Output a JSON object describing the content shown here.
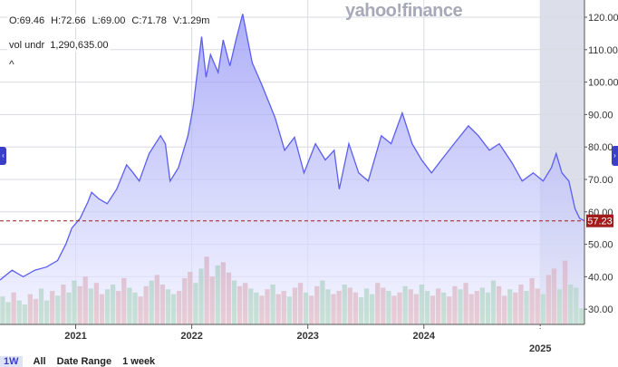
{
  "header": {
    "ohlc": {
      "open": "O:69.46",
      "high": "H:72.66",
      "low": "L:69.00",
      "close": "C:71.78",
      "volume": "V:1.29m"
    },
    "volume_under_label": "vol undr",
    "volume_under_value": "1,290,635.00",
    "collapse_icon": "caret-up-icon",
    "logo": "yahoo!finance"
  },
  "side_tabs": {
    "left": "‹",
    "right": "›"
  },
  "bottom_toolbar": {
    "first": "1W",
    "all": "All",
    "date_range": "Date Range",
    "interval": "1 week"
  },
  "colors": {
    "line": "#5b5ef0",
    "fill_top": "#8d8ff5",
    "fill_bottom": "#eef0ff",
    "volume_up": "#6cbd72",
    "volume_down": "#d8756f",
    "last_price": "#a31c1c",
    "shade": "#dcdfe9",
    "side_tab": "#3b3fc7"
  },
  "chart_data": {
    "type": "area",
    "xlabel": "",
    "ylabel": "",
    "x_ticks": [
      "2021",
      "2022",
      "2023",
      "2024",
      "2025"
    ],
    "y_ticks": [
      "30.00",
      "40.00",
      "50.00",
      "60.00",
      "70.00",
      "80.00",
      "90.00",
      "100.00",
      "110.00",
      "120.00"
    ],
    "ylim": [
      25,
      125
    ],
    "xlim": [
      "2020-05-08",
      "2025-05-20"
    ],
    "grid": true,
    "last_price": 57.23,
    "last_price_label": "57.23",
    "shaded_from": "2025-01-01",
    "price": [
      [
        "2020-05-08",
        39
      ],
      [
        "2020-06-15",
        42
      ],
      [
        "2020-07-20",
        40
      ],
      [
        "2020-08-25",
        42
      ],
      [
        "2020-10-01",
        43
      ],
      [
        "2020-11-05",
        45
      ],
      [
        "2020-12-01",
        50
      ],
      [
        "2020-12-20",
        55
      ],
      [
        "2021-01-15",
        58
      ],
      [
        "2021-02-08",
        63
      ],
      [
        "2021-02-20",
        66
      ],
      [
        "2021-03-15",
        64
      ],
      [
        "2021-04-10",
        62.5
      ],
      [
        "2021-05-10",
        67
      ],
      [
        "2021-06-10",
        74.5
      ],
      [
        "2021-07-01",
        72
      ],
      [
        "2021-07-20",
        69.5
      ],
      [
        "2021-08-20",
        78
      ],
      [
        "2021-09-25",
        83.5
      ],
      [
        "2021-10-10",
        81
      ],
      [
        "2021-10-25",
        69.5
      ],
      [
        "2021-11-20",
        73.6
      ],
      [
        "2021-12-20",
        83.5
      ],
      [
        "2022-01-05",
        92
      ],
      [
        "2022-02-01",
        114
      ],
      [
        "2022-02-15",
        101.5
      ],
      [
        "2022-03-01",
        108.5
      ],
      [
        "2022-03-25",
        103
      ],
      [
        "2022-04-10",
        113
      ],
      [
        "2022-05-01",
        105
      ],
      [
        "2022-05-20",
        113
      ],
      [
        "2022-06-10",
        121
      ],
      [
        "2022-07-10",
        106
      ],
      [
        "2022-08-10",
        99
      ],
      [
        "2022-09-20",
        89
      ],
      [
        "2022-10-20",
        79
      ],
      [
        "2022-11-20",
        83
      ],
      [
        "2022-12-20",
        72
      ],
      [
        "2023-01-25",
        81
      ],
      [
        "2023-02-25",
        76
      ],
      [
        "2023-03-25",
        79
      ],
      [
        "2023-04-10",
        67
      ],
      [
        "2023-05-10",
        81
      ],
      [
        "2023-06-10",
        72
      ],
      [
        "2023-07-10",
        69.5
      ],
      [
        "2023-08-20",
        83.5
      ],
      [
        "2023-09-20",
        81
      ],
      [
        "2023-10-25",
        90.5
      ],
      [
        "2023-11-25",
        81
      ],
      [
        "2023-12-25",
        76
      ],
      [
        "2024-01-25",
        72
      ],
      [
        "2024-02-25",
        76
      ],
      [
        "2024-04-05",
        81
      ],
      [
        "2024-05-20",
        86.5
      ],
      [
        "2024-06-20",
        83.5
      ],
      [
        "2024-07-25",
        79
      ],
      [
        "2024-08-25",
        81
      ],
      [
        "2024-10-05",
        75
      ],
      [
        "2024-11-05",
        69.5
      ],
      [
        "2024-12-10",
        72
      ],
      [
        "2025-01-10",
        69.5
      ],
      [
        "2025-02-05",
        73.6
      ],
      [
        "2025-02-20",
        78
      ],
      [
        "2025-03-10",
        72
      ],
      [
        "2025-04-01",
        69.5
      ],
      [
        "2025-04-20",
        61
      ],
      [
        "2025-05-05",
        58
      ],
      [
        "2025-05-20",
        57.23
      ]
    ],
    "volume_relative": [
      35,
      28,
      40,
      30,
      25,
      38,
      32,
      45,
      30,
      42,
      36,
      50,
      40,
      55,
      48,
      60,
      45,
      52,
      38,
      44,
      50,
      42,
      58,
      46,
      40,
      35,
      48,
      55,
      62,
      50,
      44,
      38,
      42,
      58,
      66,
      52,
      70,
      85,
      60,
      74,
      78,
      65,
      55,
      48,
      52,
      45,
      40,
      36,
      44,
      50,
      38,
      42,
      35,
      46,
      52,
      40,
      36,
      48,
      55,
      44,
      38,
      42,
      50,
      46,
      40,
      34,
      45,
      38,
      52,
      46,
      42,
      36,
      40,
      48,
      44,
      38,
      50,
      42,
      36,
      45,
      40,
      35,
      48,
      44,
      52,
      38,
      42,
      46,
      40,
      55,
      48,
      36,
      44,
      40,
      50,
      42,
      58,
      45,
      38,
      62,
      70,
      44,
      80,
      50,
      46,
      20
    ],
    "volume_direction": "uuduudduududuuddudduudduuddudduuddduudduddudduuddudduddudduuddudduuudduddudduuddudduddduuudduddudduddud"
  }
}
